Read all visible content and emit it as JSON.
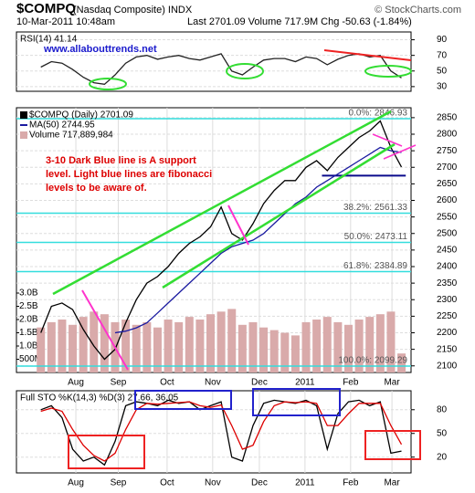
{
  "header": {
    "symbol": "$COMPQ",
    "name": "(Nasdaq Composite) INDX",
    "date": "10-Mar-2011 10:48am",
    "quote": "Last 2701.09  Volume 717.9M  Chg -50.63 (-1.84%)",
    "source": "© StockCharts.com"
  },
  "chart_data": [
    {
      "type": "line",
      "title": "RSI(14) 41.14",
      "subtitle": "www.allabouttrends.net",
      "x": [
        0,
        1,
        2,
        3,
        4,
        5,
        6,
        7,
        8,
        9,
        10,
        11,
        12,
        13,
        14,
        15,
        16,
        17,
        18,
        19,
        20,
        21,
        22,
        23,
        24,
        25,
        26,
        27,
        28,
        29,
        30,
        31,
        32,
        33,
        34
      ],
      "xlim": [
        -2.3,
        34.9
      ],
      "ylim": [
        24,
        100
      ],
      "yticks": [
        90,
        70,
        50,
        30
      ],
      "grid": true,
      "series": [
        {
          "name": "RSI(14)",
          "color": "#222222",
          "values": [
            55,
            62,
            60,
            52,
            42,
            35,
            33,
            45,
            60,
            68,
            70,
            65,
            68,
            70,
            66,
            64,
            68,
            72,
            50,
            45,
            55,
            64,
            66,
            66,
            62,
            68,
            66,
            58,
            65,
            70,
            72,
            68,
            70,
            50,
            41.14
          ]
        }
      ]
    },
    {
      "type": "line",
      "title": "$COMPQ (Daily) 2701.09",
      "x": [
        0,
        1,
        2,
        3,
        4,
        5,
        6,
        7,
        8,
        9,
        10,
        11,
        12,
        13,
        14,
        15,
        16,
        17,
        18,
        19,
        20,
        21,
        22,
        23,
        24,
        25,
        26,
        27,
        28,
        29,
        30,
        31,
        32,
        33,
        34
      ],
      "xlim": [
        -2.3,
        34.9
      ],
      "ylim": [
        2080,
        2880
      ],
      "yticks": [
        2100,
        2150,
        2200,
        2250,
        2300,
        2350,
        2400,
        2450,
        2500,
        2550,
        2600,
        2650,
        2700,
        2750,
        2800,
        2850
      ],
      "xticks": [
        {
          "value": 3.3,
          "label": "Aug"
        },
        {
          "value": 7.3,
          "label": "Sep"
        },
        {
          "value": 11.9,
          "label": "Oct"
        },
        {
          "value": 16.2,
          "label": "Nov"
        },
        {
          "value": 20.6,
          "label": "Dec"
        },
        {
          "value": 24.9,
          "label": "2011"
        },
        {
          "value": 29.2,
          "label": "Feb"
        },
        {
          "value": 33.1,
          "label": "Mar"
        }
      ],
      "y2lim": [
        0,
        10000000000
      ],
      "y2ticks": [
        {
          "value": 500000000,
          "label": "500M"
        },
        {
          "value": 1000000000,
          "label": "1.0B"
        },
        {
          "value": 1500000000,
          "label": "1.5B"
        },
        {
          "value": 2000000000,
          "label": "2.0B"
        },
        {
          "value": 2500000000,
          "label": "2.5B"
        },
        {
          "value": 3000000000,
          "label": "3.0B"
        }
      ],
      "grid": true,
      "series": [
        {
          "name": "$COMPQ (Daily) 2701.09",
          "color": "#000000",
          "values": [
            2200,
            2280,
            2290,
            2270,
            2210,
            2160,
            2120,
            2150,
            2230,
            2300,
            2350,
            2370,
            2400,
            2440,
            2470,
            2490,
            2520,
            2580,
            2500,
            2480,
            2530,
            2590,
            2630,
            2660,
            2660,
            2700,
            2720,
            2690,
            2730,
            2760,
            2790,
            2810,
            2840,
            2760,
            2701.09
          ]
        },
        {
          "name": "MA(50) 2744.95",
          "color": "#1a1aa0",
          "values": [
            null,
            null,
            null,
            null,
            null,
            null,
            null,
            2200,
            2205,
            2215,
            2230,
            2260,
            2290,
            2320,
            2350,
            2380,
            2410,
            2440,
            2460,
            2470,
            2480,
            2500,
            2530,
            2560,
            2590,
            2610,
            2640,
            2660,
            2680,
            2700,
            2720,
            2740,
            2760,
            2750,
            2744.95
          ]
        },
        {
          "name": "Volume 717,889,984",
          "color": "#d9aaaa",
          "axis": "y2",
          "values": [
            1700000000,
            1900000000,
            2000000000,
            1800000000,
            2100000000,
            2300000000,
            2200000000,
            1900000000,
            2000000000,
            1800000000,
            1900000000,
            1700000000,
            2000000000,
            1900000000,
            2100000000,
            2000000000,
            2200000000,
            2300000000,
            2400000000,
            1800000000,
            1900000000,
            1700000000,
            1600000000,
            1500000000,
            1400000000,
            1900000000,
            2000000000,
            2100000000,
            1900000000,
            1800000000,
            2000000000,
            2100000000,
            2200000000,
            2300000000,
            717889984
          ]
        }
      ],
      "fibonacci": [
        {
          "value": 2846.93,
          "label": "0.0%: 2846.93"
        },
        {
          "value": 2561.33,
          "label": "38.2%: 2561.33"
        },
        {
          "value": 2473.11,
          "label": "50.0%: 2473.11"
        },
        {
          "value": 2384.89,
          "label": "61.8%: 2384.89"
        },
        {
          "value": 2099.29,
          "label": "100.0%: 2099.29"
        }
      ],
      "fib_color": "#33dddd",
      "support": {
        "value": 2675,
        "color": "#0a0a8c"
      },
      "annotation": [
        "3-10 Dark Blue line is A support",
        "level. Light blue lines are fibonacci",
        "levels to be aware of."
      ]
    },
    {
      "type": "line",
      "title": "Full STO %K(14,3) %D(3) 27.66, 36.05",
      "x": [
        0,
        1,
        2,
        3,
        4,
        5,
        6,
        7,
        8,
        9,
        10,
        11,
        12,
        13,
        14,
        15,
        16,
        17,
        18,
        19,
        20,
        21,
        22,
        23,
        24,
        25,
        26,
        27,
        28,
        29,
        30,
        31,
        32,
        33,
        34
      ],
      "xlim": [
        -2.3,
        34.9
      ],
      "ylim": [
        0,
        104
      ],
      "yticks": [
        80,
        50,
        20
      ],
      "grid": true,
      "xticks": [
        {
          "value": 3.3,
          "label": "Aug"
        },
        {
          "value": 7.3,
          "label": "Sep"
        },
        {
          "value": 11.9,
          "label": "Oct"
        },
        {
          "value": 16.2,
          "label": "Nov"
        },
        {
          "value": 20.6,
          "label": "Dec"
        },
        {
          "value": 24.9,
          "label": "2011"
        },
        {
          "value": 29.2,
          "label": "Feb"
        },
        {
          "value": 33.1,
          "label": "Mar"
        }
      ],
      "series": [
        {
          "name": "%K",
          "color": "#000000",
          "values": [
            80,
            85,
            70,
            30,
            15,
            20,
            10,
            40,
            85,
            90,
            88,
            85,
            92,
            88,
            90,
            80,
            85,
            90,
            20,
            15,
            60,
            88,
            92,
            90,
            88,
            92,
            85,
            30,
            75,
            90,
            92,
            85,
            90,
            25,
            27.66
          ]
        },
        {
          "name": "%D",
          "color": "#dd0000",
          "values": [
            78,
            82,
            78,
            55,
            35,
            22,
            15,
            25,
            55,
            80,
            88,
            87,
            88,
            89,
            90,
            85,
            83,
            86,
            60,
            30,
            35,
            65,
            85,
            90,
            89,
            90,
            88,
            60,
            60,
            75,
            88,
            88,
            88,
            60,
            36.05
          ]
        }
      ]
    }
  ]
}
